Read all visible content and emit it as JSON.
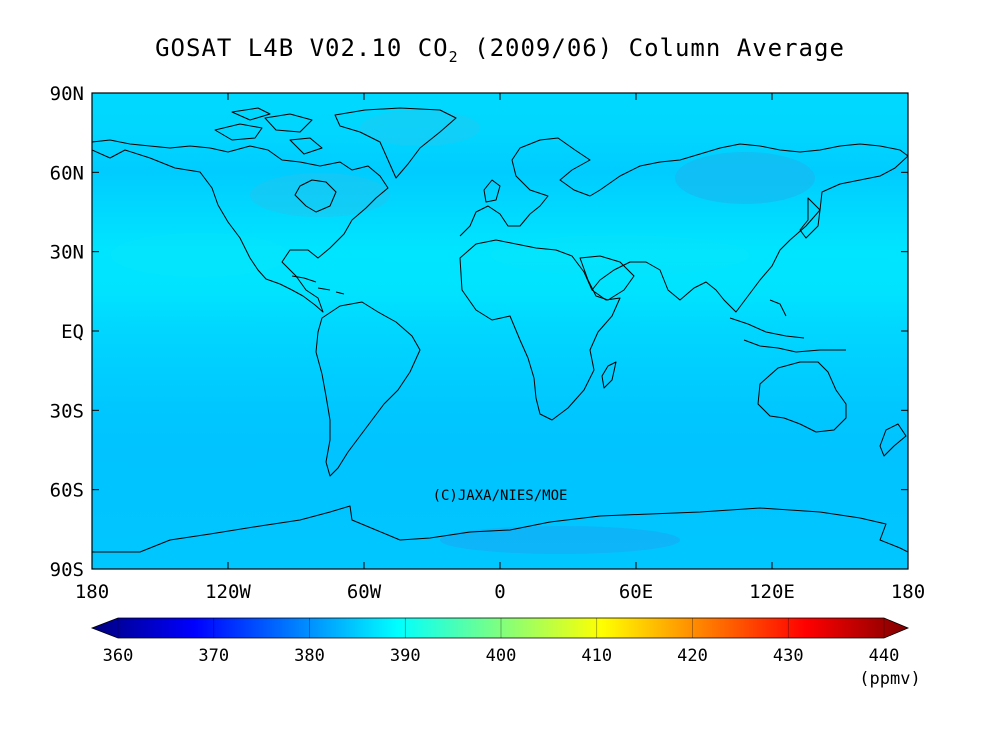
{
  "title": {
    "prefix": "GOSAT L4B V02.10 CO",
    "subscript": "2",
    "suffix": " (2009/06) Column Average"
  },
  "copyright": "(C)JAXA/NIES/MOE",
  "axes": {
    "lat_labels": [
      "90N",
      "60N",
      "30N",
      "EQ",
      "30S",
      "60S",
      "90S"
    ],
    "lon_labels": [
      "180",
      "120W",
      "60W",
      "0",
      "60E",
      "120E",
      "180"
    ]
  },
  "colorbar": {
    "ticks": [
      "360",
      "370",
      "380",
      "390",
      "400",
      "410",
      "420",
      "430",
      "440"
    ],
    "units": "(ppmv)",
    "range": [
      360,
      440
    ],
    "colors": [
      "#00007f",
      "#0000ff",
      "#007fff",
      "#00ffff",
      "#7fff7f",
      "#ffff00",
      "#ff7f00",
      "#ff0000",
      "#7f0000"
    ]
  },
  "chart_data": {
    "type": "heatmap",
    "title": "GOSAT L4B V02.10 CO2 (2009/06) Column Average",
    "variable": "CO2 column average",
    "units": "ppmv",
    "lon_range": [
      -180,
      180
    ],
    "lat_range": [
      -90,
      90
    ],
    "color_range": [
      360,
      440
    ],
    "zonal_mean_ppmv": [
      {
        "lat": 90,
        "value": 387.0
      },
      {
        "lat": 75,
        "value": 386.8
      },
      {
        "lat": 60,
        "value": 386.0
      },
      {
        "lat": 45,
        "value": 387.0
      },
      {
        "lat": 30,
        "value": 388.0
      },
      {
        "lat": 15,
        "value": 387.8
      },
      {
        "lat": 0,
        "value": 386.8
      },
      {
        "lat": -15,
        "value": 386.2
      },
      {
        "lat": -30,
        "value": 385.6
      },
      {
        "lat": -45,
        "value": 385.3
      },
      {
        "lat": -60,
        "value": 385.4
      },
      {
        "lat": -75,
        "value": 385.5
      },
      {
        "lat": -90,
        "value": 385.6
      }
    ]
  }
}
